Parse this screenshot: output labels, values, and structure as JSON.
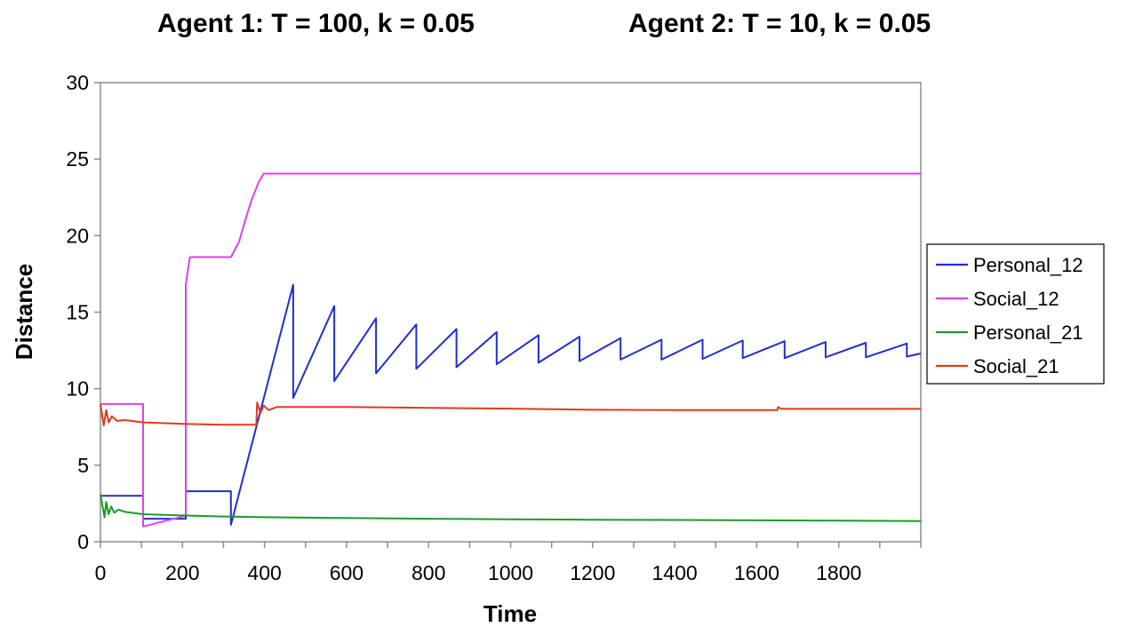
{
  "chart_data": {
    "type": "line",
    "title_left": "Agent 1: T = 100, k = 0.05",
    "title_right": "Agent 2: T = 10, k = 0.05",
    "xlabel": "Time",
    "ylabel": "Distance",
    "xlim": [
      0,
      2000
    ],
    "ylim": [
      0,
      30
    ],
    "x_ticks": [
      0,
      200,
      400,
      600,
      800,
      1000,
      1200,
      1400,
      1600,
      1800
    ],
    "y_ticks": [
      0,
      5,
      10,
      15,
      20,
      25,
      30
    ],
    "grid": false,
    "legend_position": "right",
    "series": [
      {
        "name": "Personal_12",
        "color": "#1f2fd0",
        "points": [
          [
            0,
            3
          ],
          [
            104,
            3
          ],
          [
            104,
            1.5
          ],
          [
            208,
            1.5
          ],
          [
            208,
            3.3
          ],
          [
            318,
            3.3
          ],
          [
            318,
            1.1
          ],
          [
            470,
            16.8
          ],
          [
            470,
            9.4
          ],
          [
            570,
            15.4
          ],
          [
            570,
            10.5
          ],
          [
            672,
            14.6
          ],
          [
            672,
            11
          ],
          [
            770,
            14.2
          ],
          [
            770,
            11.3
          ],
          [
            868,
            13.9
          ],
          [
            868,
            11.4
          ],
          [
            966,
            13.7
          ],
          [
            966,
            11.6
          ],
          [
            1068,
            13.5
          ],
          [
            1068,
            11.7
          ],
          [
            1168,
            13.4
          ],
          [
            1168,
            11.8
          ],
          [
            1268,
            13.3
          ],
          [
            1268,
            11.9
          ],
          [
            1368,
            13.2
          ],
          [
            1368,
            11.9
          ],
          [
            1468,
            13.2
          ],
          [
            1468,
            11.95
          ],
          [
            1566,
            13.15
          ],
          [
            1566,
            12
          ],
          [
            1668,
            13.1
          ],
          [
            1668,
            12
          ],
          [
            1768,
            13.05
          ],
          [
            1768,
            12.05
          ],
          [
            1866,
            13
          ],
          [
            1866,
            12.05
          ],
          [
            1966,
            12.95
          ],
          [
            1966,
            12.1
          ],
          [
            2000,
            12.3
          ]
        ]
      },
      {
        "name": "Social_12",
        "color": "#e040e8",
        "points": [
          [
            0,
            9
          ],
          [
            104,
            9
          ],
          [
            104,
            1
          ],
          [
            208,
            1.7
          ],
          [
            208,
            16.8
          ],
          [
            218,
            18.6
          ],
          [
            318,
            18.6
          ],
          [
            338,
            19.6
          ],
          [
            352,
            20.9
          ],
          [
            368,
            22.3
          ],
          [
            386,
            23.5
          ],
          [
            398,
            24.05
          ],
          [
            2000,
            24.05
          ]
        ]
      },
      {
        "name": "Personal_21",
        "color": "#1c9a2a",
        "points": [
          [
            0,
            3.1
          ],
          [
            10,
            1.6
          ],
          [
            14,
            2.6
          ],
          [
            20,
            1.8
          ],
          [
            26,
            2.3
          ],
          [
            34,
            1.9
          ],
          [
            44,
            2.1
          ],
          [
            60,
            1.95
          ],
          [
            104,
            1.8
          ],
          [
            200,
            1.72
          ],
          [
            300,
            1.65
          ],
          [
            400,
            1.6
          ],
          [
            600,
            1.55
          ],
          [
            800,
            1.5
          ],
          [
            1000,
            1.47
          ],
          [
            1200,
            1.44
          ],
          [
            1400,
            1.42
          ],
          [
            1600,
            1.4
          ],
          [
            1800,
            1.38
          ],
          [
            2000,
            1.35
          ]
        ]
      },
      {
        "name": "Social_21",
        "color": "#e03a1e",
        "points": [
          [
            0,
            9
          ],
          [
            8,
            7.6
          ],
          [
            14,
            8.6
          ],
          [
            20,
            7.8
          ],
          [
            28,
            8.2
          ],
          [
            40,
            7.9
          ],
          [
            60,
            7.95
          ],
          [
            104,
            7.8
          ],
          [
            200,
            7.7
          ],
          [
            300,
            7.65
          ],
          [
            380,
            7.65
          ],
          [
            382,
            9.1
          ],
          [
            390,
            8.4
          ],
          [
            398,
            8.9
          ],
          [
            410,
            8.6
          ],
          [
            430,
            8.8
          ],
          [
            600,
            8.8
          ],
          [
            800,
            8.75
          ],
          [
            1000,
            8.7
          ],
          [
            1200,
            8.62
          ],
          [
            1400,
            8.6
          ],
          [
            1650,
            8.6
          ],
          [
            1652,
            8.8
          ],
          [
            1660,
            8.68
          ],
          [
            1800,
            8.68
          ],
          [
            2000,
            8.68
          ]
        ]
      }
    ]
  }
}
